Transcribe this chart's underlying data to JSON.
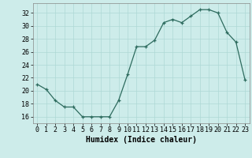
{
  "x": [
    0,
    1,
    2,
    3,
    4,
    5,
    6,
    7,
    8,
    9,
    10,
    11,
    12,
    13,
    14,
    15,
    16,
    17,
    18,
    19,
    20,
    21,
    22,
    23
  ],
  "y": [
    21.0,
    20.2,
    18.5,
    17.5,
    17.5,
    16.0,
    16.0,
    16.0,
    16.0,
    18.5,
    22.5,
    26.8,
    26.8,
    27.8,
    30.5,
    31.0,
    30.5,
    31.5,
    32.5,
    32.5,
    32.0,
    29.0,
    27.5,
    21.7
  ],
  "xlabel": "Humidex (Indice chaleur)",
  "xlim": [
    -0.5,
    23.5
  ],
  "ylim": [
    15,
    33.5
  ],
  "yticks": [
    16,
    18,
    20,
    22,
    24,
    26,
    28,
    30,
    32
  ],
  "xticks": [
    0,
    1,
    2,
    3,
    4,
    5,
    6,
    7,
    8,
    9,
    10,
    11,
    12,
    13,
    14,
    15,
    16,
    17,
    18,
    19,
    20,
    21,
    22,
    23
  ],
  "line_color": "#2d6b5e",
  "marker": "+",
  "bg_color": "#cdecea",
  "grid_color": "#aed8d5",
  "label_fontsize": 7,
  "tick_fontsize": 6
}
